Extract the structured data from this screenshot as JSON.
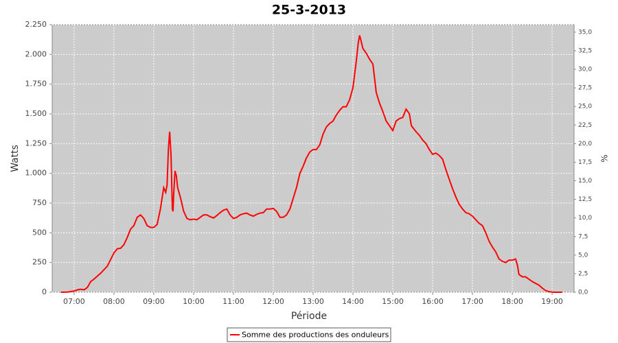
{
  "chart_data": {
    "type": "line",
    "title": "25-3-2013",
    "x_label": "Période",
    "y_label": "Watts",
    "y2_label": "%",
    "x": [
      "06:40",
      "06:50",
      "07:00",
      "07:05",
      "07:10",
      "07:15",
      "07:20",
      "07:25",
      "07:30",
      "07:40",
      "07:50",
      "08:00",
      "08:05",
      "08:10",
      "08:15",
      "08:20",
      "08:25",
      "08:30",
      "08:35",
      "08:40",
      "08:45",
      "08:50",
      "08:55",
      "09:00",
      "09:05",
      "09:10",
      "09:15",
      "09:18",
      "09:20",
      "09:22",
      "09:24",
      "09:26",
      "09:28",
      "09:29",
      "09:30",
      "09:32",
      "09:34",
      "09:36",
      "09:40",
      "09:45",
      "09:50",
      "09:55",
      "10:00",
      "10:05",
      "10:10",
      "10:15",
      "10:20",
      "10:25",
      "10:30",
      "10:35",
      "10:40",
      "10:45",
      "10:50",
      "10:55",
      "11:00",
      "11:05",
      "11:10",
      "11:15",
      "11:20",
      "11:25",
      "11:30",
      "11:35",
      "11:40",
      "11:45",
      "11:50",
      "11:55",
      "12:00",
      "12:05",
      "12:10",
      "12:15",
      "12:20",
      "12:25",
      "12:30",
      "12:35",
      "12:40",
      "12:45",
      "12:50",
      "12:55",
      "13:00",
      "13:05",
      "13:10",
      "13:15",
      "13:20",
      "13:25",
      "13:30",
      "13:35",
      "13:40",
      "13:45",
      "13:50",
      "13:55",
      "14:00",
      "14:05",
      "14:08",
      "14:10",
      "14:12",
      "14:15",
      "14:20",
      "14:25",
      "14:30",
      "14:33",
      "14:35",
      "14:40",
      "14:45",
      "14:50",
      "14:55",
      "15:00",
      "15:05",
      "15:10",
      "15:15",
      "15:20",
      "15:25",
      "15:28",
      "15:35",
      "15:40",
      "15:45",
      "15:50",
      "15:55",
      "16:00",
      "16:05",
      "16:10",
      "16:15",
      "16:20",
      "16:25",
      "16:30",
      "16:35",
      "16:40",
      "16:45",
      "16:50",
      "16:55",
      "17:00",
      "17:05",
      "17:10",
      "17:15",
      "17:20",
      "17:25",
      "17:30",
      "17:35",
      "17:40",
      "17:45",
      "17:50",
      "17:55",
      "18:00",
      "18:05",
      "18:08",
      "18:10",
      "18:15",
      "18:20",
      "18:25",
      "18:30",
      "18:35",
      "18:40",
      "18:45",
      "18:50",
      "18:55",
      "19:00",
      "19:05",
      "19:15"
    ],
    "series": [
      {
        "name": "Somme des productions des onduleurs",
        "color": "#ff0000",
        "values": [
          0,
          2,
          10,
          20,
          25,
          20,
          40,
          90,
          110,
          160,
          220,
          330,
          365,
          370,
          400,
          460,
          530,
          560,
          630,
          650,
          620,
          560,
          545,
          545,
          570,
          700,
          880,
          840,
          900,
          1200,
          1350,
          1150,
          700,
          680,
          820,
          1020,
          980,
          880,
          800,
          680,
          620,
          610,
          615,
          610,
          630,
          650,
          650,
          635,
          625,
          645,
          670,
          690,
          700,
          650,
          620,
          630,
          650,
          660,
          665,
          650,
          640,
          655,
          665,
          670,
          700,
          700,
          705,
          680,
          630,
          630,
          650,
          700,
          790,
          880,
          1000,
          1060,
          1130,
          1180,
          1200,
          1200,
          1240,
          1330,
          1390,
          1420,
          1440,
          1490,
          1530,
          1560,
          1560,
          1620,
          1720,
          1940,
          2100,
          2160,
          2120,
          2050,
          2010,
          1960,
          1920,
          1780,
          1680,
          1590,
          1520,
          1440,
          1400,
          1360,
          1440,
          1460,
          1470,
          1540,
          1500,
          1400,
          1350,
          1320,
          1280,
          1250,
          1200,
          1160,
          1170,
          1150,
          1120,
          1030,
          950,
          870,
          800,
          740,
          700,
          670,
          660,
          640,
          610,
          580,
          560,
          500,
          430,
          380,
          340,
          280,
          260,
          250,
          270,
          270,
          280,
          220,
          150,
          130,
          130,
          110,
          90,
          75,
          60,
          35,
          15,
          5,
          2,
          0,
          0
        ]
      }
    ],
    "xlim": [
      "06:27",
      "19:33"
    ],
    "xticks": [
      "07:00",
      "08:00",
      "09:00",
      "10:00",
      "11:00",
      "12:00",
      "13:00",
      "14:00",
      "15:00",
      "16:00",
      "17:00",
      "18:00",
      "19:00"
    ],
    "ylim": [
      0,
      2250
    ],
    "yticks": [
      0,
      250,
      500,
      750,
      {
        "value": 1000,
        "label": "1.000"
      },
      {
        "value": 1250,
        "label": "1.250"
      },
      {
        "value": 1500,
        "label": "1.500"
      },
      {
        "value": 1750,
        "label": "1.750"
      },
      {
        "value": 2000,
        "label": "2.000"
      },
      {
        "value": 2250,
        "label": "2.250"
      }
    ],
    "y2lim": [
      0,
      36
    ],
    "y2ticks": [
      {
        "value": 0,
        "label": "0,0"
      },
      {
        "value": 2.5,
        "label": "2,5"
      },
      {
        "value": 5,
        "label": "5,0"
      },
      {
        "value": 7.5,
        "label": "7,5"
      },
      {
        "value": 10,
        "label": "10,0"
      },
      {
        "value": 12.5,
        "label": "12,5"
      },
      {
        "value": 15,
        "label": "15,0"
      },
      {
        "value": 17.5,
        "label": "17,5"
      },
      {
        "value": 20,
        "label": "20,0"
      },
      {
        "value": 22.5,
        "label": "22,5"
      },
      {
        "value": 25,
        "label": "25,0"
      },
      {
        "value": 27.5,
        "label": "27,5"
      },
      {
        "value": 30,
        "label": "30,0"
      },
      {
        "value": 32.5,
        "label": "32,5"
      },
      {
        "value": 35,
        "label": "35,0"
      }
    ],
    "grid": true,
    "background": "#cccccc",
    "legend": "bottom"
  }
}
